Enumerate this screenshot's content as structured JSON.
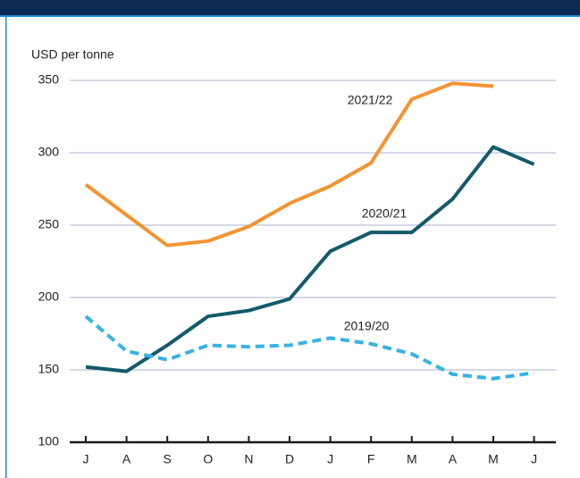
{
  "chart_data": {
    "type": "line",
    "y_axis_label": "USD per tonne",
    "categories": [
      "J",
      "A",
      "S",
      "O",
      "N",
      "D",
      "J",
      "F",
      "M",
      "A",
      "M",
      "J"
    ],
    "series": [
      {
        "name": "2021/22",
        "color": "#f39433",
        "dashed": false,
        "values": [
          278,
          257,
          236,
          239,
          249,
          265,
          277,
          293,
          337,
          348,
          346,
          null
        ]
      },
      {
        "name": "2020/21",
        "color": "#135a6c",
        "dashed": false,
        "values": [
          152,
          149,
          167,
          187,
          191,
          199,
          232,
          245,
          245,
          268,
          304,
          292
        ]
      },
      {
        "name": "2019/20",
        "color": "#37b2e3",
        "dashed": true,
        "values": [
          187,
          163,
          157,
          167,
          166,
          167,
          172,
          168,
          161,
          147,
          144,
          148
        ]
      }
    ],
    "ylim": [
      100,
      350
    ],
    "yticks": [
      100,
      150,
      200,
      250,
      300,
      350
    ],
    "grid": true
  }
}
